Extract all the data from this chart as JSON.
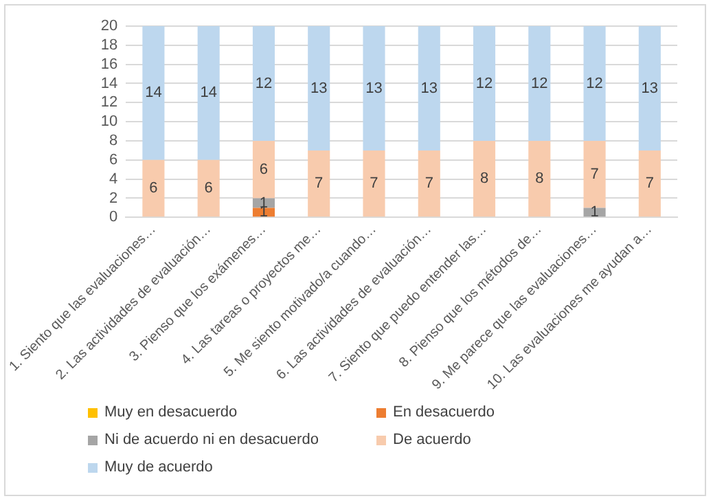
{
  "chart_data": {
    "type": "bar",
    "stacked": true,
    "categories": [
      "1. Siento que las evaluaciones…",
      "2. Las actividades de evaluación…",
      "3. Pienso que los exámenes…",
      "4. Las tareas o proyectos me…",
      "5. Me siento motivado/a cuando…",
      "6. Las actividades de evaluación…",
      "7. Siento que puedo entender las…",
      "8. Pienso que los métodos de…",
      "9. Me parece que las evaluaciones…",
      "10. Las evaluaciones me ayudan a…"
    ],
    "series": [
      {
        "name": "Muy en desacuerdo",
        "color": "#ffc000",
        "values": [
          null,
          null,
          null,
          null,
          null,
          null,
          null,
          null,
          null,
          null
        ]
      },
      {
        "name": "En desacuerdo",
        "color": "#ed7d31",
        "values": [
          null,
          null,
          1,
          null,
          null,
          null,
          null,
          null,
          null,
          null
        ]
      },
      {
        "name": "Ni de acuerdo ni en desacuerdo",
        "color": "#a5a5a5",
        "values": [
          null,
          null,
          1,
          null,
          null,
          null,
          null,
          null,
          1,
          null
        ]
      },
      {
        "name": "De acuerdo",
        "color": "#f8cbad",
        "values": [
          6,
          6,
          6,
          7,
          7,
          7,
          8,
          8,
          7,
          7
        ]
      },
      {
        "name": "Muy de acuerdo",
        "color": "#bdd7ee",
        "values": [
          14,
          14,
          12,
          13,
          13,
          13,
          12,
          12,
          12,
          13
        ]
      }
    ],
    "ylim": [
      0,
      20
    ],
    "yticks": [
      0,
      2,
      4,
      6,
      8,
      10,
      12,
      14,
      16,
      18,
      20
    ],
    "grid": "y",
    "data_labels": true,
    "legend": "bottom"
  }
}
